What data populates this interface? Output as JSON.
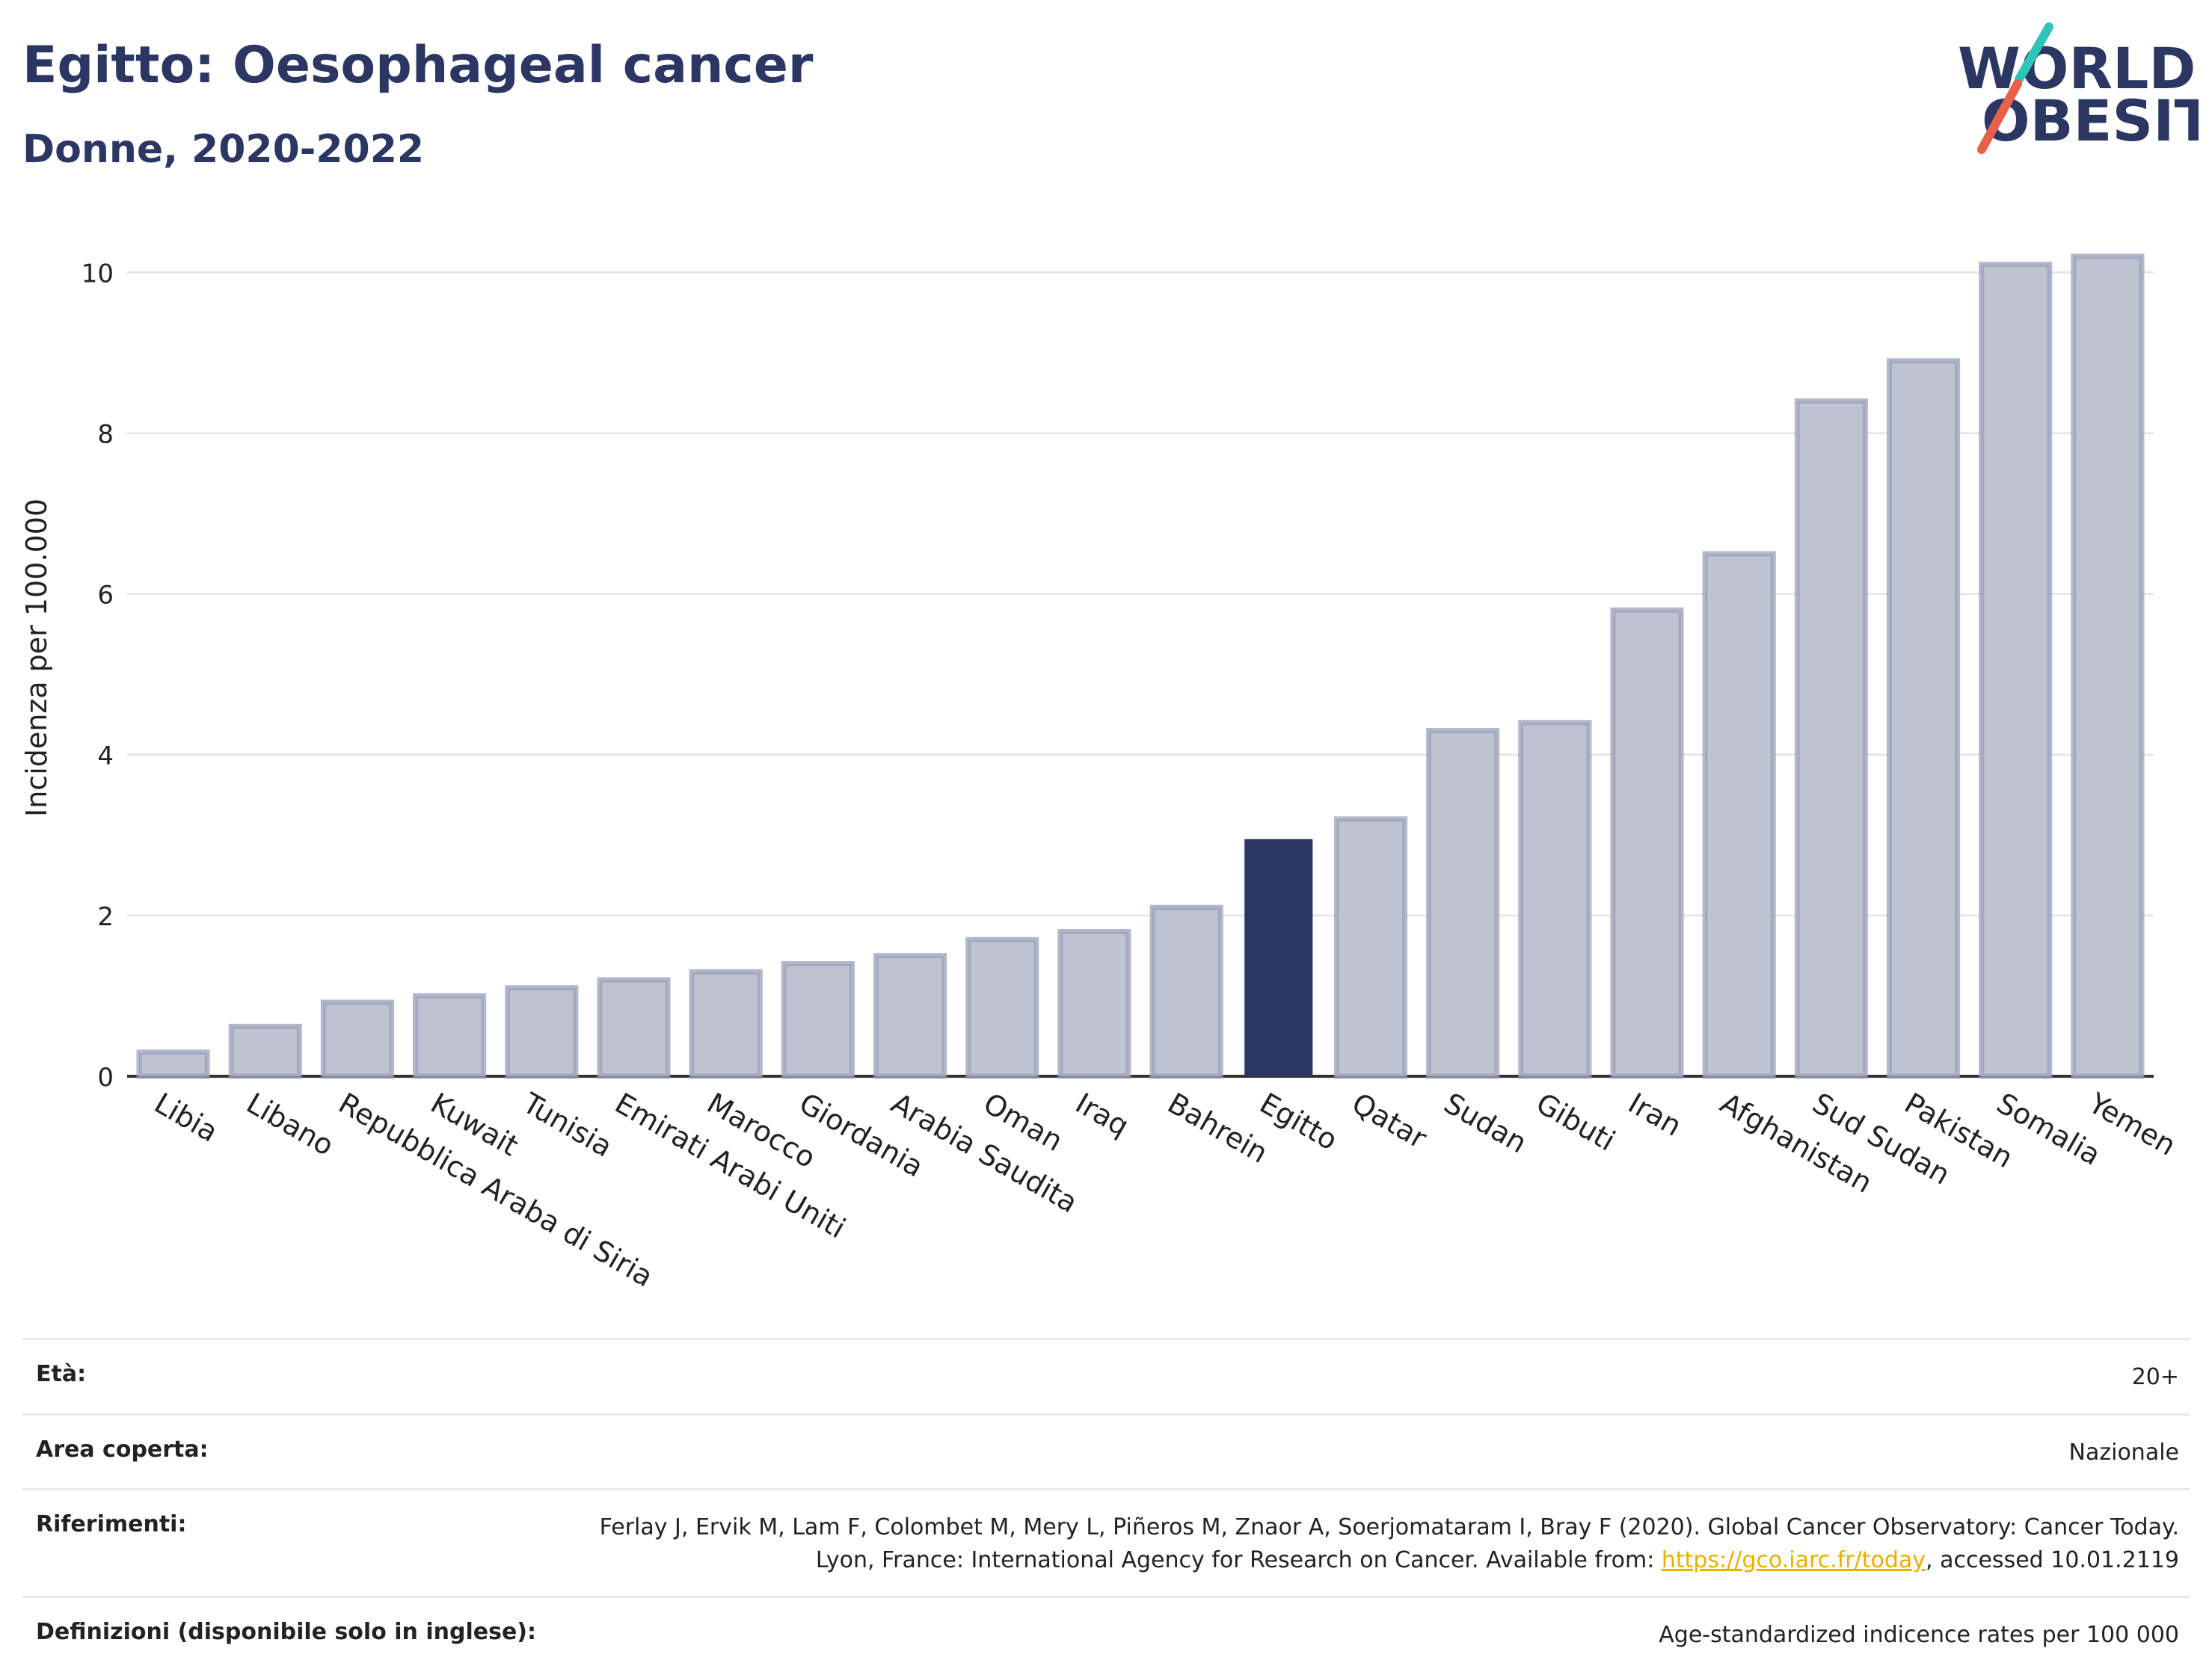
{
  "header": {
    "title": "Egitto: Oesophageal cancer",
    "subtitle": "Donne, 2020-2022"
  },
  "logo": {
    "line1": "WORLD",
    "line2": "OBESITY"
  },
  "colors": {
    "highlight": "#2b3662",
    "bar": "#bfc3d0",
    "bar_stroke": "#9aa0b8"
  },
  "chart_data": {
    "type": "bar",
    "ylabel": "Incidenza per 100.000",
    "ylim": [
      0,
      10.6
    ],
    "yticks": [
      0,
      2,
      4,
      6,
      8,
      10
    ],
    "grid": true,
    "highlight": "Egitto",
    "categories": [
      "Libia",
      "Libano",
      "Repubblica Araba di Siria",
      "Kuwait",
      "Tunisia",
      "Emirati Arabi Uniti",
      "Marocco",
      "Giordania",
      "Arabia Saudita",
      "Oman",
      "Iraq",
      "Bahrein",
      "Egitto",
      "Qatar",
      "Sudan",
      "Gibuti",
      "Iran",
      "Afghanistan",
      "Sud Sudan",
      "Pakistan",
      "Somalia",
      "Yemen"
    ],
    "values": [
      0.3,
      0.62,
      0.92,
      1.0,
      1.1,
      1.2,
      1.3,
      1.4,
      1.5,
      1.7,
      1.8,
      2.1,
      2.95,
      3.2,
      4.3,
      4.4,
      5.8,
      6.5,
      8.4,
      8.9,
      10.1,
      10.2
    ]
  },
  "info": {
    "age_label": "Età:",
    "age_value": "20+",
    "area_label": "Area coperta:",
    "area_value": "Nazionale",
    "refs_label": "Riferimenti:",
    "refs_text_1": "Ferlay J, Ervik M, Lam F, Colombet M, Mery L, Piñeros M, Znaor A, Soerjomataram I, Bray F (2020). Global Cancer Observatory: Cancer Today. Lyon, France: International Agency for Research on Cancer. Available from: ",
    "refs_link": "https://gco.iarc.fr/today",
    "refs_text_2": ", accessed 10.01.2119",
    "defs_label": "Definizioni (disponibile solo in inglese):",
    "defs_value": "Age-standardized indicence rates per 100 000"
  }
}
